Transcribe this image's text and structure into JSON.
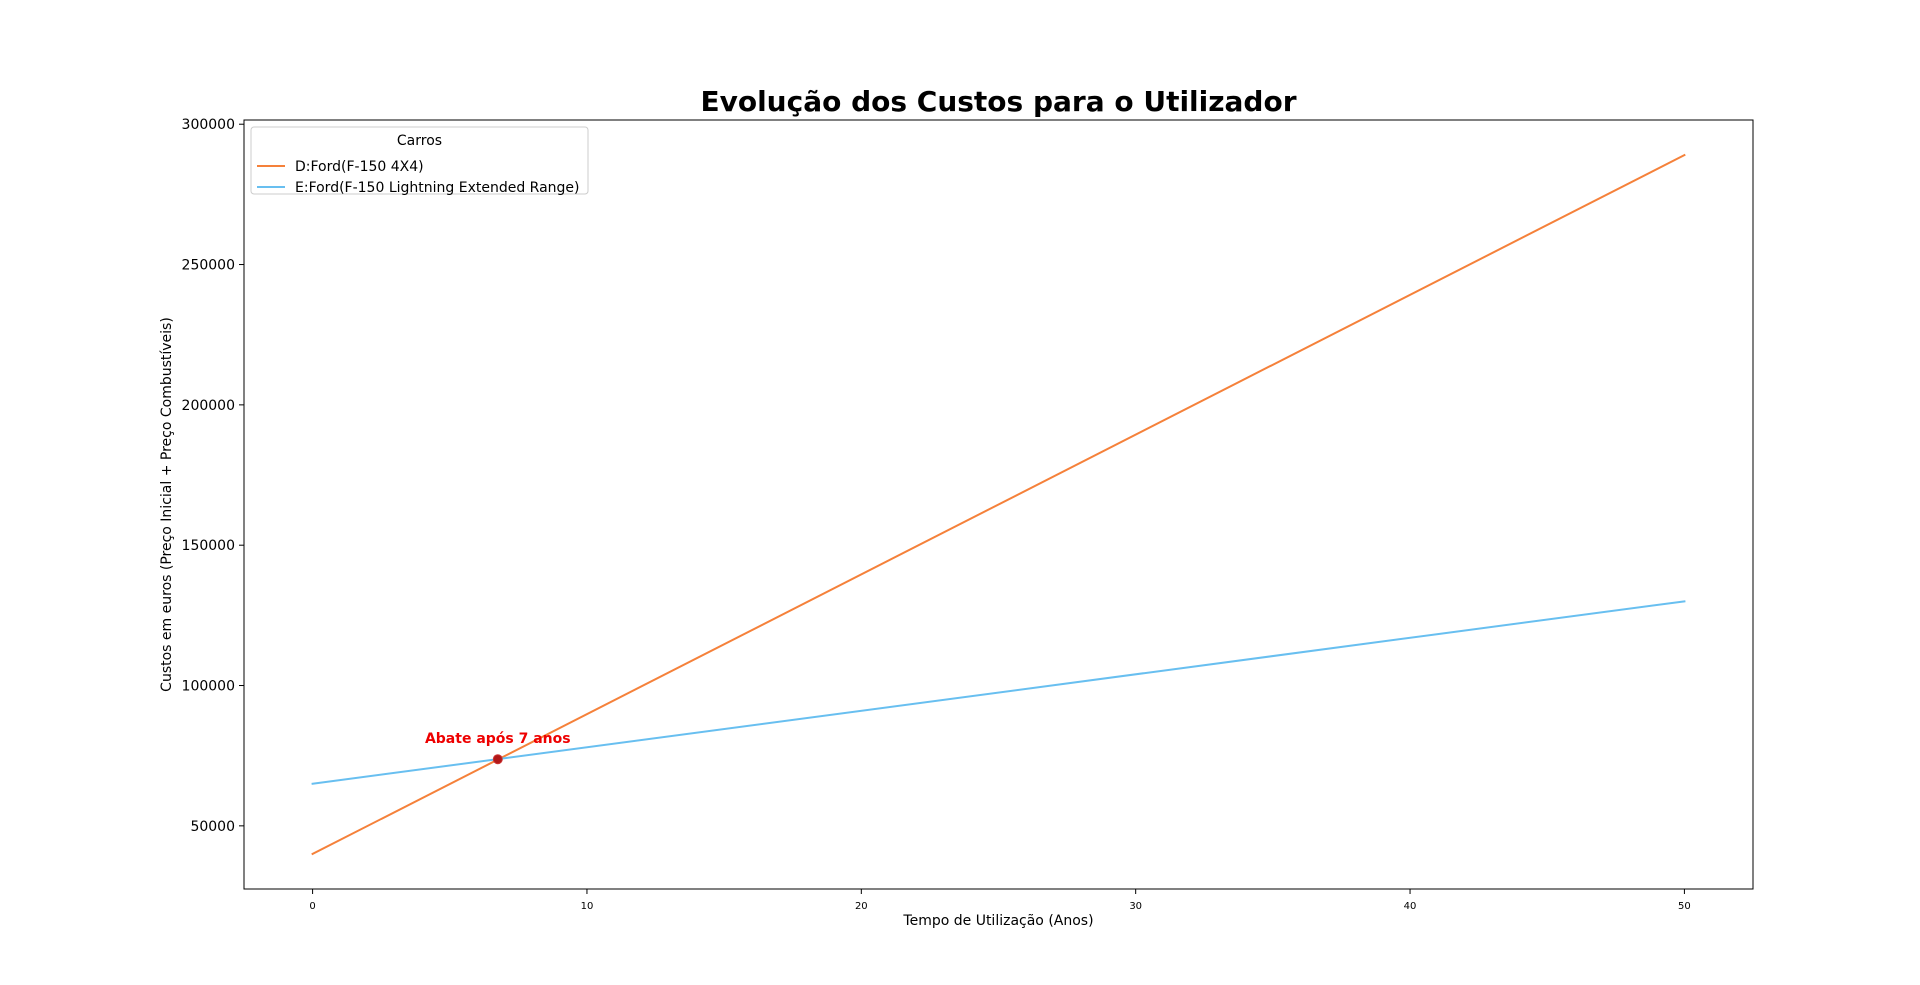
{
  "chart_data": {
    "type": "line",
    "title": "Evolução dos Custos para o Utilizador",
    "xlabel": "Tempo de Utilização (Anos)",
    "ylabel": "Custos em euros (Preço Inicial + Preço Combustíveis)",
    "xlim": [
      -2.5,
      52.5
    ],
    "ylim": [
      27500,
      301500
    ],
    "xticks": [
      0,
      10,
      20,
      30,
      40,
      50
    ],
    "yticks": [
      50000,
      100000,
      150000,
      200000,
      250000,
      300000
    ],
    "grid": false,
    "legend": {
      "title": "Carros",
      "placement": "upper-left"
    },
    "series": [
      {
        "name": "D:Ford(F-150 4X4)",
        "color": "#f5813a",
        "x": [
          0,
          50
        ],
        "y": [
          40000,
          289000
        ]
      },
      {
        "name": "E:Ford(F-150 Lightning Extended Range)",
        "color": "#68bff0",
        "x": [
          0,
          50
        ],
        "y": [
          65000,
          130000
        ]
      }
    ],
    "annotations": [
      {
        "text": "Abate após 7 anos",
        "x": 6.75,
        "y": 73750,
        "color": "#ee0000",
        "marker_color": "#b01818"
      }
    ]
  }
}
